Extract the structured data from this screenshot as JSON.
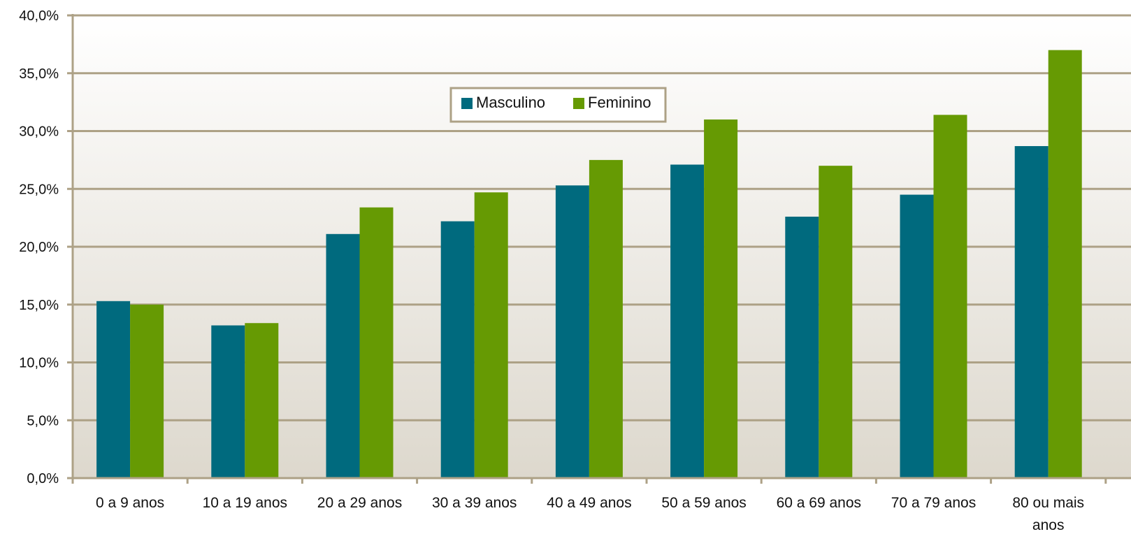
{
  "chart_data": {
    "type": "bar",
    "categories": [
      "0 a 9 anos",
      "10 a 19 anos",
      "20 a 29 anos",
      "30 a 39 anos",
      "40 a 49 anos",
      "50 a 59 anos",
      "60 a 69 anos",
      "70 a 79 anos",
      "80 ou mais anos"
    ],
    "series": [
      {
        "name": "Masculino",
        "color": "#006A7E",
        "values": [
          15.3,
          13.2,
          21.1,
          22.2,
          25.3,
          27.1,
          22.6,
          24.5,
          28.7
        ]
      },
      {
        "name": "Feminino",
        "color": "#669A03",
        "values": [
          15.0,
          13.4,
          23.4,
          24.7,
          27.5,
          31.0,
          27.0,
          31.4,
          37.0
        ]
      }
    ],
    "ylim": [
      0,
      40
    ],
    "yticks": [
      "0,0%",
      "5,0%",
      "10,0%",
      "15,0%",
      "20,0%",
      "25,0%",
      "30,0%",
      "35,0%",
      "40,0%"
    ],
    "grid": true,
    "legend_position": "top-center",
    "colors": {
      "grid": "#ADA186",
      "axis": "#ADA186",
      "plot_bg_top": "#FFFFFF",
      "plot_bg_bottom": "#DDD8CD"
    }
  }
}
